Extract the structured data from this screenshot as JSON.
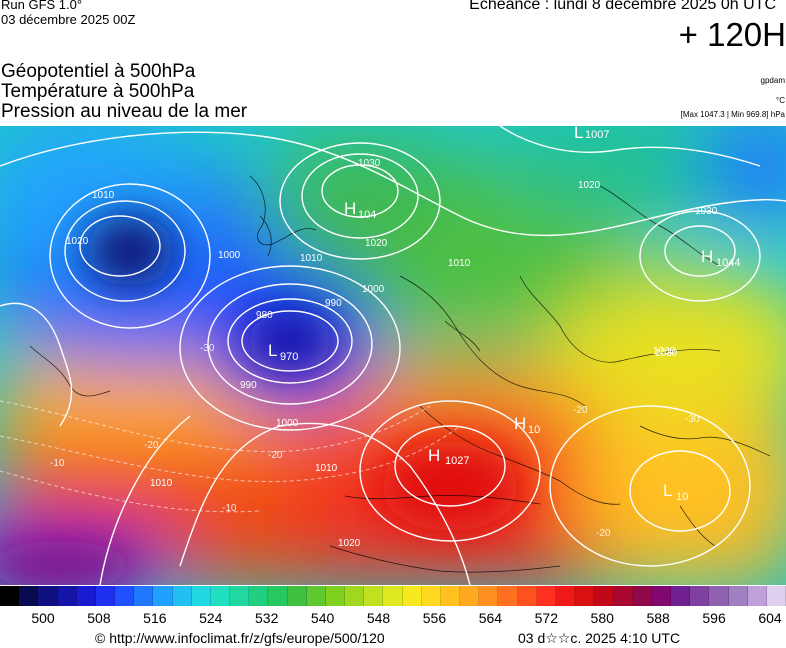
{
  "header": {
    "run_label": "Run GFS 1.0°",
    "run_date": "03 décembre 2025 00Z",
    "echeance": "Echéance : lundi 8 décembre 2025 0h UTC",
    "lead_time": "+ 120H"
  },
  "variables": {
    "line1": "Géopotentiel à 500hPa",
    "line2": "Température à 500hPa",
    "line3": "Pression au niveau de la mer",
    "unit_gpdam": "gpdam",
    "unit_temp": "°C",
    "max_min": "[Max 1047.3 | Min 969.8] hPa"
  },
  "centers": [
    {
      "type": "L",
      "value": "1007"
    },
    {
      "type": "H",
      "value": "104"
    },
    {
      "type": "H",
      "value": "1044"
    },
    {
      "type": "L",
      "value": "970"
    },
    {
      "type": "H",
      "value": "1027"
    },
    {
      "type": "H",
      "value": "10"
    },
    {
      "type": "L",
      "value": "10"
    }
  ],
  "isobar_labels": [
    "1030",
    "1020",
    "1010",
    "1000",
    "990",
    "980",
    "1030",
    "1030",
    "1020",
    "1010",
    "1000",
    "990",
    "1000",
    "1010",
    "1010",
    "1010",
    "1020",
    "1020",
    "1030"
  ],
  "isotherm_labels": [
    "-20",
    "-20",
    "-10",
    "-10",
    "-30",
    "-30",
    "-20",
    "-20"
  ],
  "colorbar": {
    "colors": [
      "#000000",
      "#0a0a50",
      "#101080",
      "#1414a8",
      "#1a1ad0",
      "#2030f0",
      "#2050ff",
      "#2078ff",
      "#20a0ff",
      "#20c0f0",
      "#20d8e0",
      "#20e0c0",
      "#20d8a0",
      "#20d080",
      "#28c860",
      "#40c040",
      "#60c830",
      "#80d020",
      "#a0d820",
      "#c0e020",
      "#e0e820",
      "#f8e820",
      "#ffd820",
      "#ffc020",
      "#ffa820",
      "#ff9020",
      "#ff7020",
      "#ff5020",
      "#ff3020",
      "#f01818",
      "#d81010",
      "#c00818",
      "#a80830",
      "#900848",
      "#800870",
      "#702090",
      "#8040a0",
      "#9060b0",
      "#a080c0",
      "#c0a0d8",
      "#e0d0f0"
    ],
    "ticks": [
      "500",
      "508",
      "516",
      "524",
      "532",
      "540",
      "548",
      "556",
      "564",
      "572",
      "580",
      "588",
      "596",
      "604"
    ]
  },
  "footer": {
    "copyright": "© http://www.infoclimat.fr/z/gfs/europe/500/120",
    "generated": "03 d☆☆c. 2025  4:10 UTC"
  }
}
